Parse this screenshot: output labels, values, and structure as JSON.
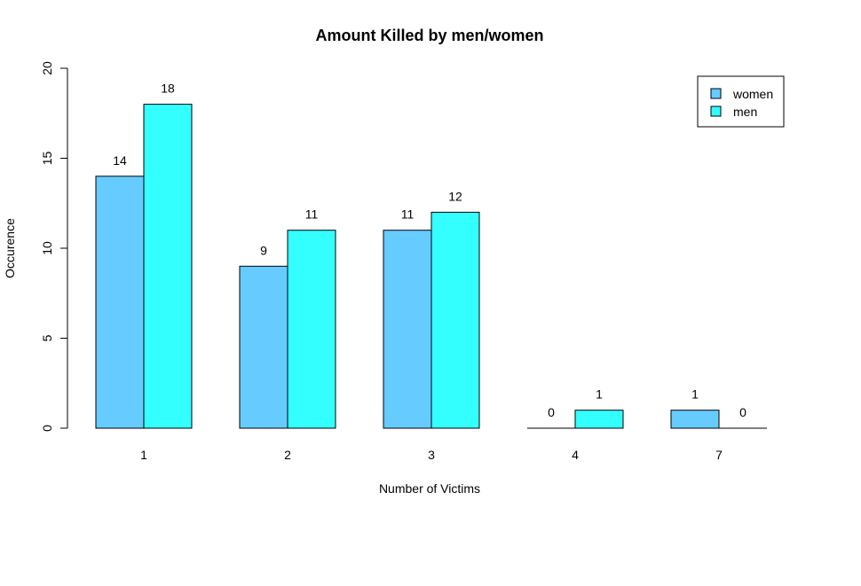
{
  "chart_data": {
    "type": "bar",
    "title": "Amount Killed by men/women",
    "xlabel": "Number of Victims",
    "ylabel": "Occurence",
    "categories": [
      "1",
      "2",
      "3",
      "4",
      "7"
    ],
    "series": [
      {
        "name": "women",
        "values": [
          14,
          9,
          11,
          0,
          1
        ],
        "color": "#66CCFF"
      },
      {
        "name": "men",
        "values": [
          18,
          11,
          12,
          1,
          0
        ],
        "color": "#33FFFF"
      }
    ],
    "ylim": [
      0,
      20
    ],
    "yticks": [
      "0",
      "5",
      "10",
      "15",
      "20"
    ],
    "legend_position": "top-right",
    "grid": false
  }
}
